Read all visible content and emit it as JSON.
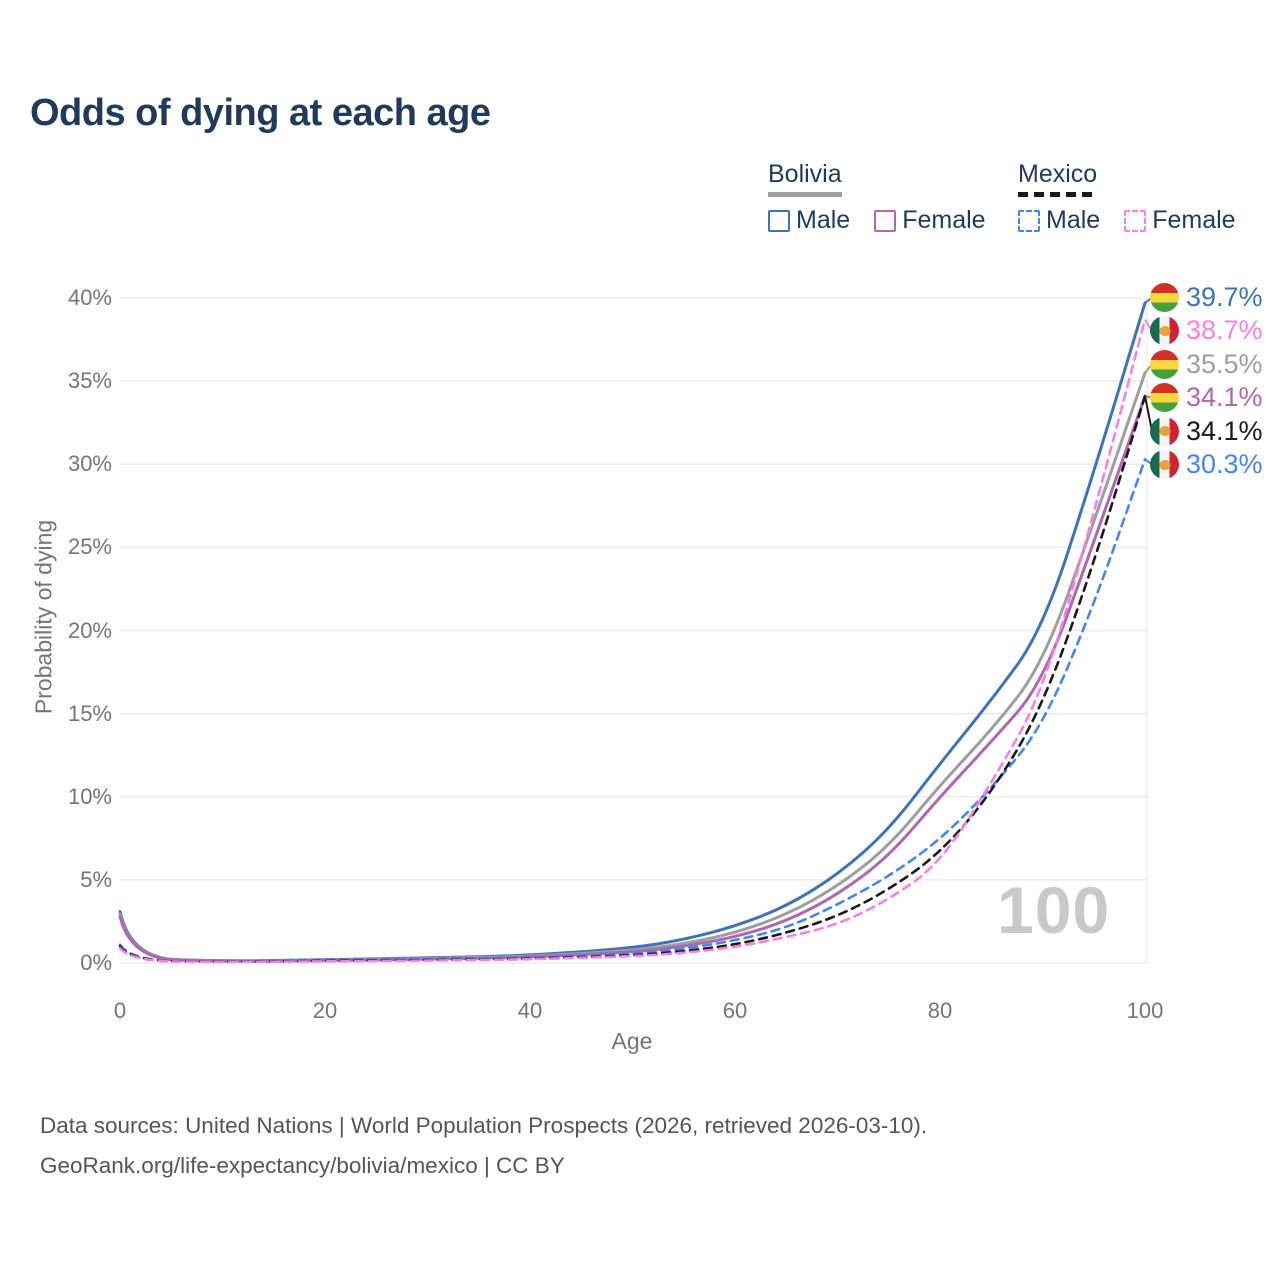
{
  "title": "Odds of dying at each age",
  "legend": {
    "groups": [
      {
        "country": "Bolivia",
        "style": "solid",
        "underline_color": "#9e9e9e",
        "items": [
          {
            "label": "Male",
            "color": "#3d73ba"
          },
          {
            "label": "Female",
            "color": "#ae67b0"
          }
        ]
      },
      {
        "country": "Mexico",
        "style": "dashed",
        "underline_color": "#1a1a1a",
        "items": [
          {
            "label": "Male",
            "color": "#4486f0"
          },
          {
            "label": "Female",
            "color": "#fa7ee7"
          }
        ]
      }
    ]
  },
  "chart_data": {
    "type": "line",
    "title": "Odds of dying at each age",
    "xlabel": "Age",
    "ylabel": "Probability of dying",
    "xlim": [
      0,
      100
    ],
    "ylim": [
      0,
      40
    ],
    "x_ticks": [
      0,
      20,
      40,
      60,
      80,
      100
    ],
    "y_ticks": [
      "0%",
      "5%",
      "10%",
      "15%",
      "20%",
      "25%",
      "30%",
      "35%",
      "40%"
    ],
    "grid": "horizontal",
    "legend_position": "top-right",
    "watermark": "100",
    "x": [
      0,
      1,
      10,
      20,
      30,
      40,
      50,
      55,
      60,
      65,
      70,
      75,
      80,
      85,
      90,
      95,
      100
    ],
    "series": [
      {
        "name": "Bolivia Male",
        "country": "Bolivia",
        "sex": "Male",
        "style": "solid",
        "color": "#3d73ba",
        "values": [
          3.1,
          0.3,
          0.1,
          0.2,
          0.3,
          0.45,
          0.9,
          1.4,
          2.2,
          3.4,
          5.3,
          8.0,
          12.0,
          15.8,
          20.0,
          29.5,
          39.7
        ]
      },
      {
        "name": "Bolivia Both sexes",
        "country": "Bolivia",
        "sex": "Both",
        "style": "solid",
        "color": "#9e9e9e",
        "values": [
          2.95,
          0.28,
          0.09,
          0.17,
          0.26,
          0.4,
          0.75,
          1.15,
          1.8,
          2.9,
          4.6,
          7.0,
          10.7,
          14.0,
          17.9,
          26.5,
          35.5
        ]
      },
      {
        "name": "Bolivia Female",
        "country": "Bolivia",
        "sex": "Female",
        "style": "solid",
        "color": "#ae67b0",
        "values": [
          2.8,
          0.26,
          0.08,
          0.14,
          0.22,
          0.35,
          0.65,
          1.0,
          1.55,
          2.5,
          4.1,
          6.4,
          10.0,
          13.3,
          16.8,
          25.3,
          34.1
        ]
      },
      {
        "name": "Mexico Male",
        "country": "Mexico",
        "sex": "Male",
        "style": "dashed",
        "color": "#4486f0",
        "values": [
          1.1,
          0.15,
          0.08,
          0.2,
          0.25,
          0.3,
          0.55,
          0.85,
          1.35,
          2.1,
          3.5,
          5.2,
          7.4,
          10.5,
          14.2,
          21.5,
          30.3
        ]
      },
      {
        "name": "Mexico Both sexes",
        "country": "Mexico",
        "sex": "Both",
        "style": "dashed",
        "color": "#1a1a1a",
        "values": [
          1.0,
          0.13,
          0.06,
          0.13,
          0.17,
          0.25,
          0.45,
          0.7,
          1.1,
          1.8,
          2.8,
          4.4,
          6.6,
          10.2,
          15.4,
          24.0,
          34.1
        ]
      },
      {
        "name": "Mexico Female",
        "country": "Mexico",
        "sex": "Female",
        "style": "dashed",
        "color": "#fa7ee7",
        "values": [
          0.9,
          0.12,
          0.05,
          0.1,
          0.14,
          0.22,
          0.4,
          0.6,
          0.95,
          1.55,
          2.3,
          3.8,
          6.0,
          10.8,
          16.2,
          27.0,
          38.7
        ]
      }
    ],
    "end_labels": [
      {
        "series": "Bolivia Male",
        "text": "39.7%",
        "color": "#3d73ba",
        "flag": "bolivia"
      },
      {
        "series": "Mexico Female",
        "text": "38.7%",
        "color": "#fa7ee7",
        "flag": "mexico"
      },
      {
        "series": "Bolivia Both sexes",
        "text": "35.5%",
        "color": "#9e9e9e",
        "flag": "bolivia"
      },
      {
        "series": "Bolivia Female",
        "text": "34.1%",
        "color": "#ae67b0",
        "flag": "bolivia"
      },
      {
        "series": "Mexico Both sexes",
        "text": "34.1%",
        "color": "#1a1a1a",
        "flag": "mexico"
      },
      {
        "series": "Mexico Male",
        "text": "30.3%",
        "color": "#4486f0",
        "flag": "mexico"
      }
    ]
  },
  "footer": {
    "line1": "Data sources: United Nations | World Population Prospects (2026, retrieved 2026-03-10).",
    "line2": "GeoRank.org/life-expectancy/bolivia/mexico | CC BY"
  }
}
